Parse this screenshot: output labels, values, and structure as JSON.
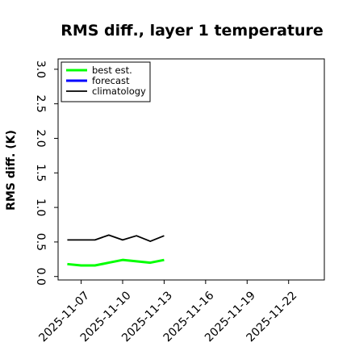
{
  "chart_data": {
    "type": "line",
    "title": "RMS diff., layer 1 temperature",
    "xlabel": "",
    "ylabel": "RMS diff. (K)",
    "ylim": [
      -0.05,
      3.15
    ],
    "xlim": [
      "2025-11-05T08:00",
      "2025-11-24T14:00"
    ],
    "yticks": [
      0.0,
      0.5,
      1.0,
      1.5,
      2.0,
      2.5,
      3.0
    ],
    "ytick_labels": [
      "0.0",
      "0.5",
      "1.0",
      "1.5",
      "2.0",
      "2.5",
      "3.0"
    ],
    "xticks": [
      "2025-11-07",
      "2025-11-10",
      "2025-11-13",
      "2025-11-16",
      "2025-11-19",
      "2025-11-22"
    ],
    "xtick_labels": [
      "2025-11-07",
      "2025-11-10",
      "2025-11-13",
      "2025-11-16",
      "2025-11-19",
      "2025-11-22"
    ],
    "xtick_colors": [
      "#000000",
      "#000000",
      "#228b22",
      "#000000",
      "#000000",
      "#000000"
    ],
    "grid": false,
    "legend_position": "upper left",
    "series": [
      {
        "name": "best est.",
        "color": "#00ff00",
        "x": [
          "2025-11-06T00:00",
          "2025-11-07T00:00",
          "2025-11-08T00:00",
          "2025-11-09T00:00",
          "2025-11-10T00:00",
          "2025-11-11T00:00",
          "2025-11-12T00:00",
          "2025-11-13T00:00"
        ],
        "values": [
          0.18,
          0.16,
          0.16,
          0.2,
          0.24,
          0.22,
          0.2,
          0.24
        ]
      },
      {
        "name": "forecast",
        "color": "#0000ff",
        "x": [],
        "values": []
      },
      {
        "name": "climatology",
        "color": "#000000",
        "x": [
          "2025-11-06T00:00",
          "2025-11-07T00:00",
          "2025-11-08T00:00",
          "2025-11-09T00:00",
          "2025-11-10T00:00",
          "2025-11-11T00:00",
          "2025-11-12T00:00",
          "2025-11-13T00:00"
        ],
        "values": [
          0.53,
          0.53,
          0.53,
          0.6,
          0.53,
          0.59,
          0.51,
          0.59
        ]
      }
    ]
  }
}
